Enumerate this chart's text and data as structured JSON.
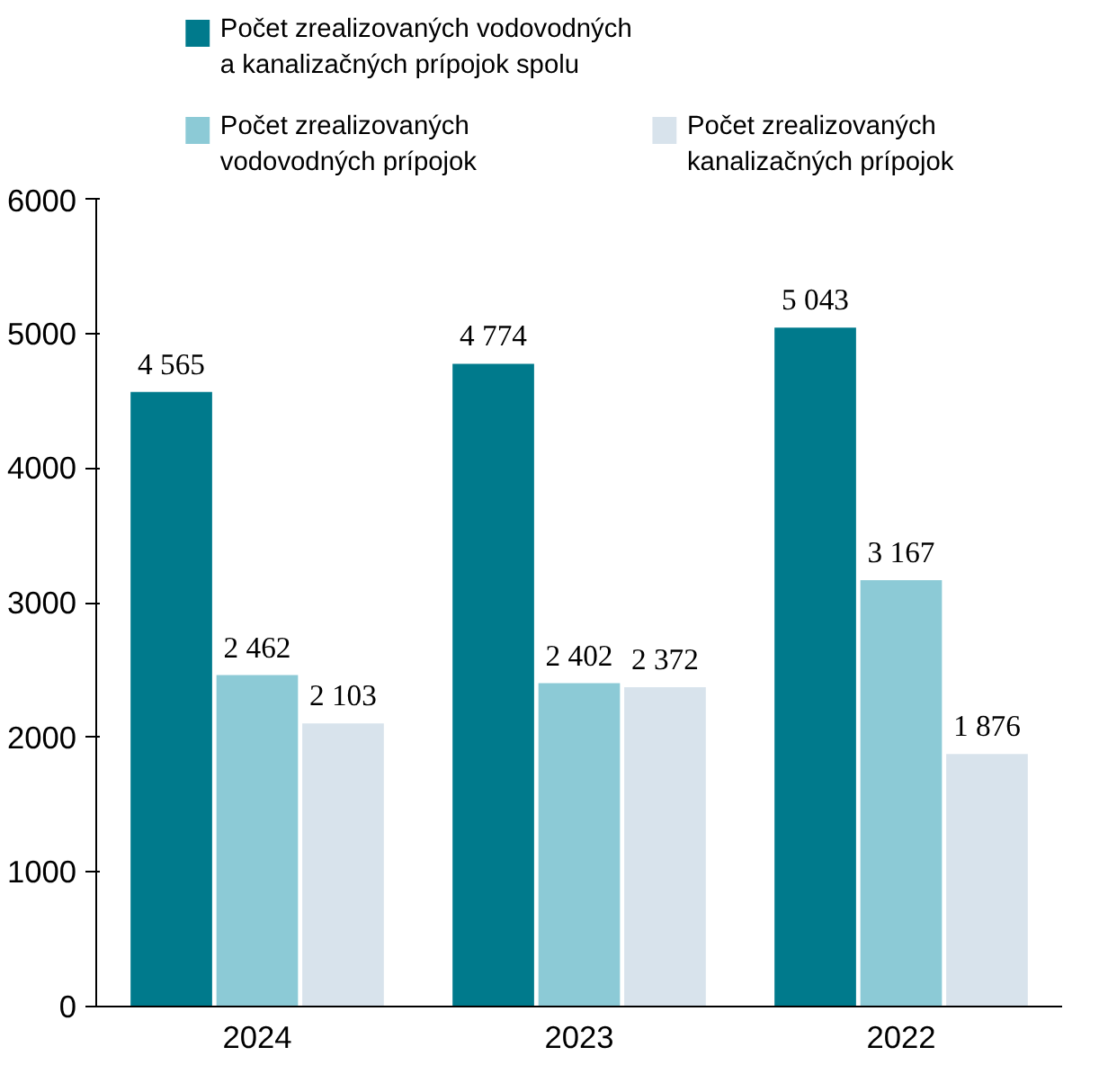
{
  "chart_data": {
    "type": "bar",
    "categories": [
      "2024",
      "2023",
      "2022"
    ],
    "series": [
      {
        "name": "Počet zrealizovaných vodovodných\na kanalizačných prípojok spolu",
        "color": "#007a8c",
        "values": [
          4565,
          4774,
          5043
        ],
        "value_labels": [
          "4 565",
          "4 774",
          "5 043"
        ]
      },
      {
        "name": "Počet zrealizovaných\nvodovodných prípojok",
        "color": "#8ccad6",
        "values": [
          2462,
          2402,
          3167
        ],
        "value_labels": [
          "2 462",
          "2 402",
          "3 167"
        ]
      },
      {
        "name": "Počet zrealizovaných\nkanalizačných prípojok",
        "color": "#d8e3ec",
        "values": [
          2103,
          2372,
          1876
        ],
        "value_labels": [
          "2 103",
          "2 372",
          "1 876"
        ]
      }
    ],
    "ylim": [
      0,
      6000
    ],
    "yticks": [
      0,
      1000,
      2000,
      3000,
      4000,
      5000,
      6000
    ],
    "grid": false,
    "legend": "top"
  }
}
